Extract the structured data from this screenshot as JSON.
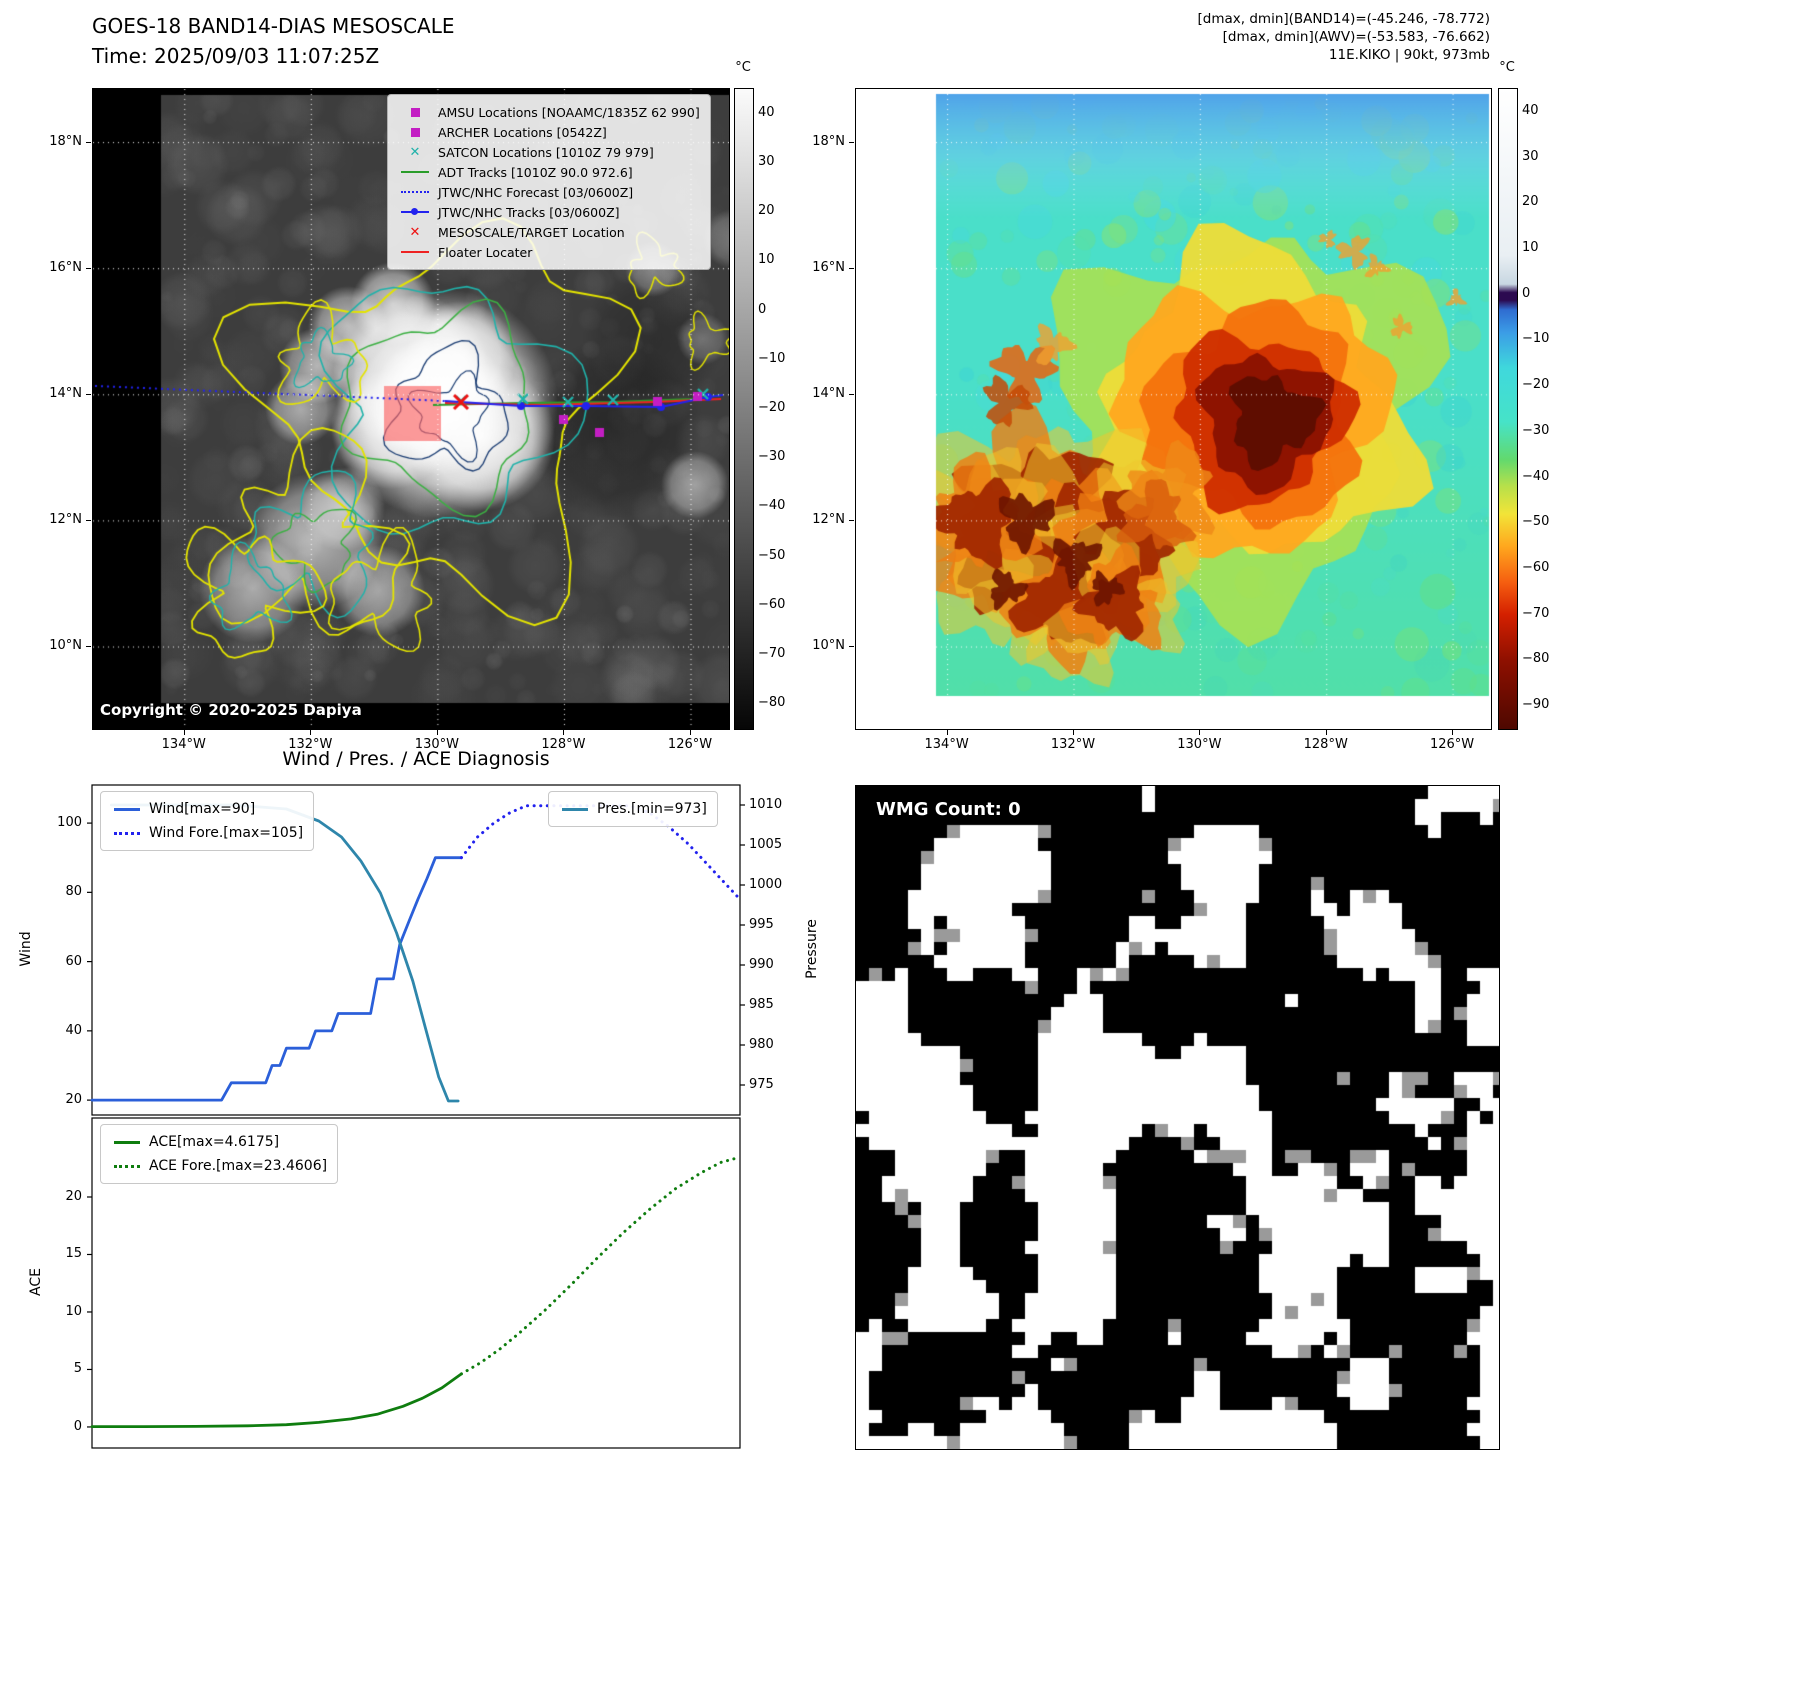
{
  "band14_panel": {
    "title": "GOES-18 BAND14-DIAS MESOSCALE",
    "subtitle": "Time: 2025/09/03 11:07:25Z",
    "copyright": "Copyright © 2020-2025 Dapiya",
    "colorbar": {
      "unit": "°C",
      "vmax": 45,
      "vmin": -85,
      "ticks": [
        40,
        30,
        20,
        10,
        0,
        -10,
        -20,
        -30,
        -40,
        -50,
        -60,
        -70,
        -80
      ],
      "gradient": [
        {
          "p": 0,
          "c": "#fbfbfb"
        },
        {
          "p": 1,
          "c": "#060606"
        }
      ]
    },
    "axes": {
      "x_ticks": [
        {
          "label": "134°W",
          "value": -134
        },
        {
          "label": "132°W",
          "value": -132
        },
        {
          "label": "130°W",
          "value": -130
        },
        {
          "label": "128°W",
          "value": -128
        },
        {
          "label": "126°W",
          "value": -126
        }
      ],
      "y_ticks": [
        {
          "label": "18°N",
          "value": 18
        },
        {
          "label": "16°N",
          "value": 16
        },
        {
          "label": "14°N",
          "value": 14
        },
        {
          "label": "12°N",
          "value": 12
        },
        {
          "label": "10°N",
          "value": 10
        }
      ],
      "lon_range": [
        -135.45,
        -125.4
      ],
      "lat_range": [
        8.7,
        18.85
      ]
    },
    "legend": [
      {
        "label": "AMSU Locations [NOAAMC/1835Z 62 990]",
        "marker": "square",
        "color": "#c31ec3"
      },
      {
        "label": "ARCHER Locations [0542Z]",
        "marker": "square",
        "color": "#c31ec3"
      },
      {
        "label": "SATCON Locations [1010Z 79 979]",
        "marker": "x",
        "color": "#20b2aa"
      },
      {
        "label": "ADT Tracks [1010Z 90.0 972.6]",
        "marker": "line",
        "color": "#2a9d2a"
      },
      {
        "label": "JTWC/NHC Forecast [03/0600Z]",
        "marker": "dotted",
        "color": "#2222ee"
      },
      {
        "label": "JTWC/NHC Tracks [03/0600Z]",
        "marker": "line-marker",
        "color": "#2222ee"
      },
      {
        "label": "MESOSCALE/TARGET Location",
        "marker": "x",
        "color": "#ee1111"
      },
      {
        "label": "Floater Locater",
        "marker": "line",
        "color": "#ee2222"
      }
    ]
  },
  "awv_panel": {
    "title_lines": [
      "[dmax, dmin](BAND14)=(-45.246, -78.772)",
      "[dmax, dmin](AWV)=(-53.583, -76.662)",
      "11E.KIKO | 90kt, 973mb"
    ],
    "colorbar": {
      "unit": "°C",
      "vmax": 45,
      "vmin": -95,
      "ticks": [
        40,
        30,
        20,
        10,
        0,
        -10,
        -20,
        -30,
        -40,
        -50,
        -60,
        -70,
        -80,
        -90
      ],
      "gradient": [
        {
          "p": 0,
          "c": "#ffffff"
        },
        {
          "p": 0.26,
          "c": "#e9eff3"
        },
        {
          "p": 0.305,
          "c": "#c8d7e2"
        },
        {
          "p": 0.318,
          "c": "#2c0a50"
        },
        {
          "p": 0.33,
          "c": "#2c0a50"
        },
        {
          "p": 0.345,
          "c": "#2f6cd0"
        },
        {
          "p": 0.38,
          "c": "#3b9ce6"
        },
        {
          "p": 0.436,
          "c": "#3fd8dc"
        },
        {
          "p": 0.52,
          "c": "#46e3c8"
        },
        {
          "p": 0.579,
          "c": "#62d96e"
        },
        {
          "p": 0.621,
          "c": "#b8e04a"
        },
        {
          "p": 0.664,
          "c": "#f2e438"
        },
        {
          "p": 0.714,
          "c": "#ffa81e"
        },
        {
          "p": 0.771,
          "c": "#f55e10"
        },
        {
          "p": 0.821,
          "c": "#d42000"
        },
        {
          "p": 0.893,
          "c": "#8e1000"
        },
        {
          "p": 1,
          "c": "#4e0800"
        }
      ]
    },
    "axes": {
      "x_ticks": [
        {
          "label": "134°W",
          "value": -134
        },
        {
          "label": "132°W",
          "value": -132
        },
        {
          "label": "130°W",
          "value": -130
        },
        {
          "label": "128°W",
          "value": -128
        },
        {
          "label": "126°W",
          "value": -126
        }
      ],
      "y_ticks": [
        {
          "label": "18°N",
          "value": 18
        },
        {
          "label": "16°N",
          "value": 16
        },
        {
          "label": "14°N",
          "value": 14
        },
        {
          "label": "12°N",
          "value": 12
        },
        {
          "label": "10°N",
          "value": 10
        }
      ],
      "lon_range": [
        -135.45,
        -125.4
      ],
      "lat_range": [
        8.7,
        18.85
      ]
    }
  },
  "wmg_panel": {
    "label": "WMG Count: 0"
  },
  "chart_data": [
    {
      "type": "line",
      "title": "Wind / Pres. / ACE Diagnosis",
      "ylabel_left": "Wind",
      "ylabel_right": "Pressure",
      "ylim_left": [
        15.7,
        111
      ],
      "yticks_left": [
        20,
        40,
        60,
        80,
        100
      ],
      "ylim_right": [
        971.25,
        1012.5
      ],
      "yticks_right": [
        975,
        980,
        985,
        990,
        995,
        1000,
        1005,
        1010
      ],
      "xlim": [
        0,
        1
      ],
      "x_ticks": [],
      "legend_left": [
        0,
        1
      ],
      "legend_right": [
        2
      ],
      "series": [
        {
          "name": "Wind[max=90]",
          "axis": "left",
          "style": "solid",
          "color": "#2b5fd9",
          "x": [
            0,
            0.2,
            0.215,
            0.225,
            0.268,
            0.278,
            0.29,
            0.3,
            0.335,
            0.345,
            0.37,
            0.38,
            0.43,
            0.44,
            0.465,
            0.475,
            0.49,
            0.503,
            0.517,
            0.53,
            0.545,
            0.57
          ],
          "y": [
            20,
            20,
            25,
            25,
            25,
            30,
            30,
            35,
            35,
            40,
            40,
            45,
            45,
            55,
            55,
            65,
            72,
            78,
            84,
            90,
            90,
            90
          ]
        },
        {
          "name": "Wind Fore.[max=105]",
          "axis": "left",
          "style": "dotted",
          "color": "#2222ee",
          "x": [
            0.57,
            0.595,
            0.62,
            0.645,
            0.67,
            0.73,
            0.79,
            0.83,
            0.86,
            0.89,
            0.92,
            0.95,
            0.975,
            1.0
          ],
          "y": [
            90,
            96,
            100,
            103,
            105,
            105,
            105,
            105,
            103,
            99,
            94,
            88,
            83,
            78
          ]
        },
        {
          "name": "Pres.[min=973]",
          "axis": "right",
          "style": "solid",
          "color": "#2e86ab",
          "x": [
            0.03,
            0.12,
            0.22,
            0.3,
            0.35,
            0.385,
            0.415,
            0.445,
            0.47,
            0.495,
            0.515,
            0.535,
            0.55,
            0.565
          ],
          "y": [
            1010,
            1010,
            1010,
            1009.5,
            1008,
            1006,
            1003,
            999,
            994,
            988,
            982,
            976,
            973,
            973
          ]
        }
      ]
    },
    {
      "type": "line",
      "title": "",
      "ylabel_left": "ACE",
      "ylim_left": [
        -1.83,
        26.87
      ],
      "yticks_left": [
        0,
        5,
        10,
        15,
        20
      ],
      "xlim": [
        0,
        1
      ],
      "x_ticks": [],
      "legend_left": [
        0,
        1
      ],
      "series": [
        {
          "name": "ACE[max=4.6175]",
          "axis": "left",
          "style": "solid",
          "color": "#0f7d0f",
          "x": [
            0,
            0.08,
            0.16,
            0.24,
            0.3,
            0.35,
            0.4,
            0.44,
            0.48,
            0.51,
            0.54,
            0.57
          ],
          "y": [
            0.03,
            0.03,
            0.05,
            0.1,
            0.2,
            0.4,
            0.7,
            1.1,
            1.8,
            2.5,
            3.4,
            4.6175
          ]
        },
        {
          "name": "ACE Fore.[max=23.4606]",
          "axis": "left",
          "style": "dotted",
          "color": "#0f7d0f",
          "x": [
            0.57,
            0.6,
            0.63,
            0.66,
            0.7,
            0.74,
            0.78,
            0.82,
            0.86,
            0.9,
            0.94,
            0.97,
            1.0
          ],
          "y": [
            4.6175,
            5.6,
            6.8,
            8.2,
            10.2,
            12.4,
            14.7,
            16.9,
            18.9,
            20.7,
            22.1,
            23.0,
            23.4606
          ]
        }
      ]
    }
  ]
}
